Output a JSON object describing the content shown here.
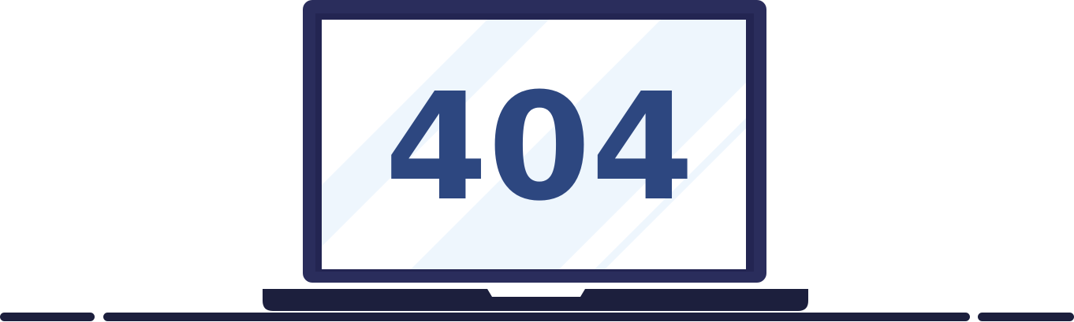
{
  "illustration": {
    "error_code": "404",
    "icon": "laptop-icon"
  },
  "colors": {
    "frame": "#2a2d5c",
    "screen_border": "#232552",
    "screen": "#ffffff",
    "glare": "#eef6fd",
    "digits": "#2d4780",
    "base": "#1c1f3d",
    "floor": "#1c1f3d",
    "background": "#ffffff"
  }
}
